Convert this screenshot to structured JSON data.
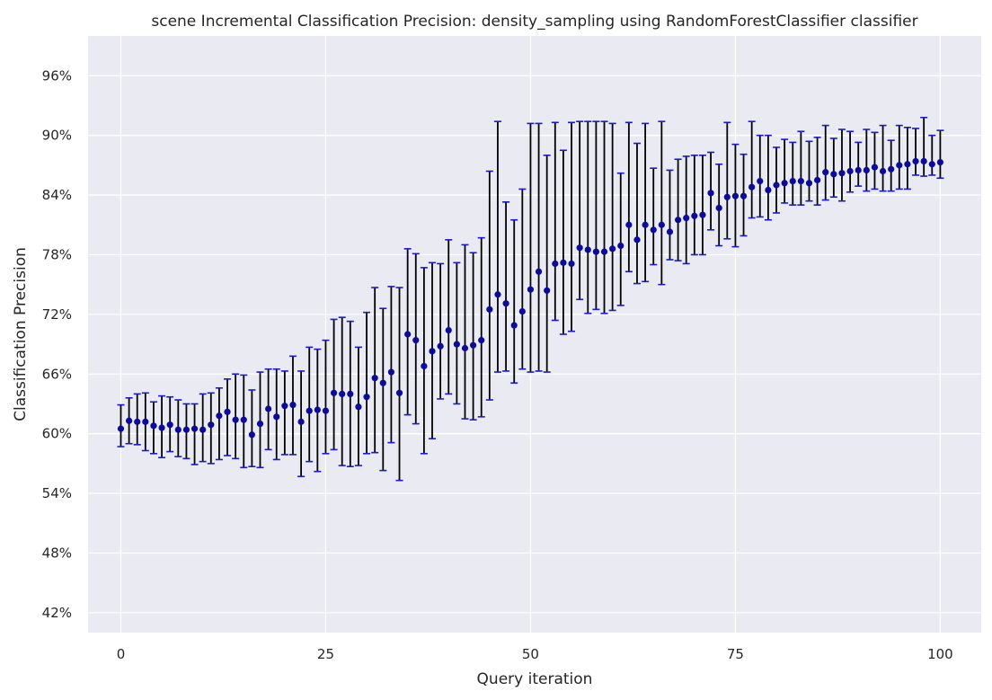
{
  "chart_data": {
    "type": "scatter",
    "title": "scene Incremental Classification Precision: density_sampling using RandomForestClassifier classifier",
    "xlabel": "Query iteration",
    "ylabel": "Classification Precision",
    "xlim": [
      -4,
      105
    ],
    "ylim": [
      0.4,
      1.0
    ],
    "xticks": [
      0,
      25,
      50,
      75,
      100
    ],
    "yticks": [
      0.42,
      0.48,
      0.54,
      0.6,
      0.66,
      0.72,
      0.78,
      0.84,
      0.9,
      0.96
    ],
    "ytick_labels": [
      "42%",
      "48%",
      "54%",
      "60%",
      "66%",
      "72%",
      "78%",
      "84%",
      "90%",
      "96%"
    ],
    "grid": true,
    "legend": "none",
    "colors": {
      "background": "#eaeaf2",
      "grid": "#ffffff",
      "marker": "#0a0a9e",
      "error_bar": "#000000",
      "cap": "#1a1acc"
    },
    "series": [
      {
        "x": [
          0,
          1,
          2,
          3,
          4,
          5,
          6,
          7,
          8,
          9,
          10,
          11,
          12,
          13,
          14,
          15,
          16,
          17,
          18,
          19,
          20,
          21,
          22,
          23,
          24,
          25,
          26,
          27,
          28,
          29,
          30,
          31,
          32,
          33,
          34,
          35,
          36,
          37,
          38,
          39,
          40,
          41,
          42,
          43,
          44,
          45,
          46,
          47,
          48,
          49,
          50,
          51,
          52,
          53,
          54,
          55,
          56,
          57,
          58,
          59,
          60,
          61,
          62,
          63,
          64,
          65,
          66,
          67,
          68,
          69,
          70,
          71,
          72,
          73,
          74,
          75,
          76,
          77,
          78,
          79,
          80,
          81,
          82,
          83,
          84,
          85,
          86,
          87,
          88,
          89,
          90,
          91,
          92,
          93,
          94,
          95,
          96,
          97,
          98,
          99,
          100
        ],
        "y": [
          0.605,
          0.613,
          0.612,
          0.612,
          0.608,
          0.606,
          0.609,
          0.604,
          0.604,
          0.605,
          0.604,
          0.609,
          0.618,
          0.622,
          0.614,
          0.614,
          0.599,
          0.61,
          0.625,
          0.617,
          0.628,
          0.629,
          0.612,
          0.623,
          0.624,
          0.623,
          0.641,
          0.64,
          0.64,
          0.627,
          0.637,
          0.656,
          0.651,
          0.662,
          0.641,
          0.7,
          0.694,
          0.668,
          0.683,
          0.688,
          0.704,
          0.69,
          0.686,
          0.689,
          0.694,
          0.725,
          0.74,
          0.731,
          0.709,
          0.723,
          0.745,
          0.763,
          0.744,
          0.771,
          0.772,
          0.771,
          0.787,
          0.785,
          0.783,
          0.783,
          0.786,
          0.789,
          0.81,
          0.795,
          0.81,
          0.805,
          0.81,
          0.803,
          0.815,
          0.817,
          0.819,
          0.82,
          0.842,
          0.827,
          0.838,
          0.839,
          0.839,
          0.848,
          0.854,
          0.845,
          0.85,
          0.852,
          0.854,
          0.854,
          0.852,
          0.855,
          0.863,
          0.861,
          0.862,
          0.864,
          0.865,
          0.865,
          0.868,
          0.864,
          0.866,
          0.87,
          0.871,
          0.874,
          0.874,
          0.871,
          0.873
        ],
        "y_low": [
          0.587,
          0.59,
          0.589,
          0.583,
          0.58,
          0.576,
          0.582,
          0.577,
          0.575,
          0.569,
          0.572,
          0.57,
          0.574,
          0.578,
          0.575,
          0.566,
          0.567,
          0.566,
          0.584,
          0.574,
          0.579,
          0.579,
          0.557,
          0.572,
          0.562,
          0.58,
          0.584,
          0.568,
          0.567,
          0.568,
          0.58,
          0.581,
          0.563,
          0.591,
          0.553,
          0.619,
          0.61,
          0.58,
          0.595,
          0.635,
          0.64,
          0.63,
          0.615,
          0.614,
          0.617,
          0.634,
          0.662,
          0.663,
          0.651,
          0.665,
          0.662,
          0.663,
          0.662,
          0.714,
          0.7,
          0.703,
          0.735,
          0.721,
          0.725,
          0.721,
          0.724,
          0.729,
          0.763,
          0.751,
          0.753,
          0.77,
          0.75,
          0.775,
          0.774,
          0.771,
          0.78,
          0.78,
          0.805,
          0.789,
          0.796,
          0.788,
          0.799,
          0.817,
          0.818,
          0.815,
          0.822,
          0.832,
          0.83,
          0.83,
          0.834,
          0.83,
          0.835,
          0.838,
          0.834,
          0.843,
          0.849,
          0.844,
          0.846,
          0.844,
          0.844,
          0.846,
          0.846,
          0.86,
          0.859,
          0.86,
          0.857
        ],
        "y_high": [
          0.629,
          0.636,
          0.64,
          0.641,
          0.632,
          0.638,
          0.637,
          0.634,
          0.63,
          0.63,
          0.64,
          0.641,
          0.646,
          0.655,
          0.66,
          0.659,
          0.644,
          0.662,
          0.665,
          0.665,
          0.663,
          0.678,
          0.663,
          0.687,
          0.685,
          0.694,
          0.715,
          0.717,
          0.713,
          0.687,
          0.722,
          0.747,
          0.726,
          0.748,
          0.747,
          0.786,
          0.781,
          0.767,
          0.772,
          0.771,
          0.795,
          0.772,
          0.79,
          0.782,
          0.797,
          0.864,
          0.914,
          0.833,
          0.815,
          0.846,
          0.912,
          0.912,
          0.88,
          0.913,
          0.885,
          0.913,
          0.914,
          0.914,
          0.914,
          0.914,
          0.912,
          0.862,
          0.913,
          0.892,
          0.912,
          0.867,
          0.914,
          0.865,
          0.876,
          0.879,
          0.88,
          0.88,
          0.883,
          0.871,
          0.913,
          0.891,
          0.881,
          0.914,
          0.9,
          0.9,
          0.888,
          0.896,
          0.893,
          0.904,
          0.894,
          0.898,
          0.91,
          0.897,
          0.906,
          0.904,
          0.893,
          0.906,
          0.903,
          0.91,
          0.895,
          0.91,
          0.908,
          0.907,
          0.918,
          0.9,
          0.905
        ]
      }
    ]
  }
}
